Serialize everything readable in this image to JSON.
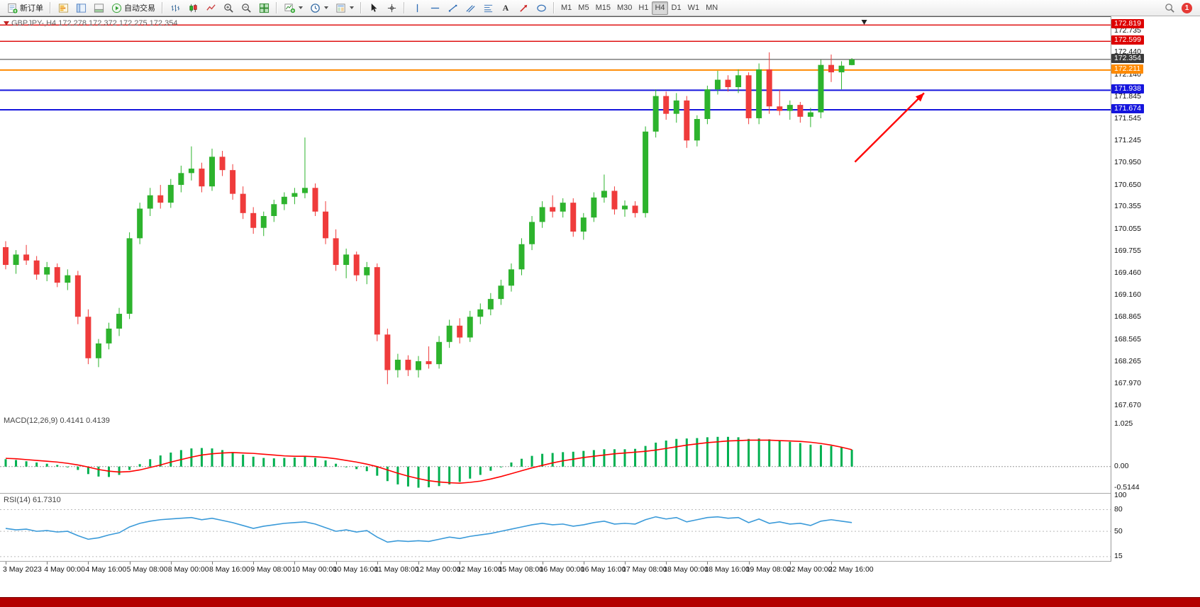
{
  "colors": {
    "bull": "#2db32d",
    "bear": "#ef3b3b",
    "macd_histogram": "#00b050",
    "macd_signal": "#ff0000",
    "rsi_line": "#3a9ad9",
    "arrow_annotation": "#ff0000",
    "bottom_bar": "#b30000"
  },
  "toolbar": {
    "new_order": "新订单",
    "autotrading": "自动交易",
    "text_tool_glyph": "A",
    "timeframes": [
      "M1",
      "M5",
      "M15",
      "M30",
      "H1",
      "H4",
      "D1",
      "W1",
      "MN"
    ],
    "active_timeframe": "H4",
    "notification_badge": "1"
  },
  "chart": {
    "title": "GBPJPY-,H4 172.278 172.372 172.275 172.354",
    "macd_label": "MACD(12,26,9) 0.4141 0.4139",
    "rsi_label": "RSI(14) 61.7310"
  },
  "chart_data": [
    {
      "type": "candlestick",
      "symbol": "GBPJPY-",
      "timeframe": "H4",
      "current_ohlc": {
        "open": 172.278,
        "high": 172.372,
        "low": 172.275,
        "close": 172.354
      },
      "ylim": [
        167.62,
        172.86
      ],
      "price_ticks": [
        "172.735",
        "172.440",
        "172.140",
        "171.845",
        "171.545",
        "171.245",
        "170.950",
        "170.650",
        "170.355",
        "170.055",
        "169.755",
        "169.460",
        "169.160",
        "168.865",
        "168.565",
        "168.265",
        "167.970",
        "167.670"
      ],
      "levels": [
        {
          "name": "resistance-line-172819",
          "price": 172.819,
          "label": "172.819",
          "color": "#dd0000",
          "lw": 1.4
        },
        {
          "name": "resistance-line-172599",
          "price": 172.599,
          "label": "172.599",
          "color": "#dd0000",
          "lw": 1.4
        },
        {
          "name": "current-price-line",
          "price": 172.354,
          "label": "172.354",
          "color": "#3b3b3b",
          "lw": 1
        },
        {
          "name": "pivot-line-172211",
          "price": 172.211,
          "label": "172.211",
          "color": "#ff8a00",
          "lw": 2
        },
        {
          "name": "support-line-171938",
          "price": 171.938,
          "label": "171.938",
          "color": "#1515dd",
          "lw": 2
        },
        {
          "name": "support-line-171674",
          "price": 171.674,
          "label": "171.674",
          "color": "#1515dd",
          "lw": 2
        }
      ],
      "annotations": {
        "arrow": {
          "from_bar": 82.3,
          "from_price": 170.97,
          "to_bar": 89.0,
          "to_price": 171.9
        },
        "top_marker_bar": 83.2
      },
      "candles": [
        [
          169.82,
          169.9,
          169.52,
          169.58
        ],
        [
          169.58,
          169.78,
          169.46,
          169.72
        ],
        [
          169.72,
          169.85,
          169.58,
          169.64
        ],
        [
          169.64,
          169.7,
          169.38,
          169.45
        ],
        [
          169.45,
          169.62,
          169.36,
          169.55
        ],
        [
          169.55,
          169.6,
          169.28,
          169.34
        ],
        [
          169.34,
          169.52,
          169.24,
          169.44
        ],
        [
          169.44,
          169.5,
          168.78,
          168.88
        ],
        [
          168.88,
          168.98,
          168.24,
          168.32
        ],
        [
          168.32,
          168.58,
          168.2,
          168.52
        ],
        [
          168.52,
          168.8,
          168.44,
          168.72
        ],
        [
          168.72,
          169.0,
          168.62,
          168.92
        ],
        [
          168.92,
          170.02,
          168.85,
          169.94
        ],
        [
          169.94,
          170.42,
          169.86,
          170.34
        ],
        [
          170.34,
          170.62,
          170.24,
          170.52
        ],
        [
          170.52,
          170.66,
          170.34,
          170.42
        ],
        [
          170.42,
          170.74,
          170.35,
          170.66
        ],
        [
          170.66,
          170.92,
          170.56,
          170.82
        ],
        [
          170.82,
          171.18,
          170.72,
          170.88
        ],
        [
          170.88,
          170.96,
          170.56,
          170.64
        ],
        [
          170.64,
          171.15,
          170.58,
          171.04
        ],
        [
          171.04,
          171.12,
          170.78,
          170.86
        ],
        [
          170.86,
          170.94,
          170.46,
          170.54
        ],
        [
          170.54,
          170.64,
          170.2,
          170.28
        ],
        [
          170.28,
          170.36,
          170.0,
          170.08
        ],
        [
          170.08,
          170.3,
          169.97,
          170.24
        ],
        [
          170.24,
          170.46,
          170.16,
          170.4
        ],
        [
          170.4,
          170.56,
          170.32,
          170.5
        ],
        [
          170.5,
          170.62,
          170.4,
          170.55
        ],
        [
          170.55,
          171.3,
          170.48,
          170.62
        ],
        [
          170.62,
          170.68,
          170.24,
          170.3
        ],
        [
          170.3,
          170.44,
          169.86,
          169.94
        ],
        [
          169.94,
          170.06,
          169.5,
          169.58
        ],
        [
          169.58,
          169.8,
          169.4,
          169.72
        ],
        [
          169.72,
          169.76,
          169.36,
          169.44
        ],
        [
          169.44,
          169.62,
          169.32,
          169.55
        ],
        [
          169.55,
          169.6,
          168.55,
          168.64
        ],
        [
          168.64,
          168.72,
          167.97,
          168.16
        ],
        [
          168.16,
          168.38,
          168.06,
          168.3
        ],
        [
          168.3,
          168.36,
          168.08,
          168.16
        ],
        [
          168.16,
          168.35,
          168.06,
          168.28
        ],
        [
          168.28,
          168.48,
          168.18,
          168.24
        ],
        [
          168.24,
          168.62,
          168.18,
          168.54
        ],
        [
          168.54,
          168.84,
          168.46,
          168.76
        ],
        [
          168.76,
          168.86,
          168.52,
          168.6
        ],
        [
          168.6,
          168.96,
          168.54,
          168.88
        ],
        [
          168.88,
          169.06,
          168.78,
          168.98
        ],
        [
          168.98,
          169.2,
          168.9,
          169.12
        ],
        [
          169.12,
          169.38,
          169.04,
          169.3
        ],
        [
          169.3,
          169.6,
          169.22,
          169.52
        ],
        [
          169.52,
          169.94,
          169.44,
          169.86
        ],
        [
          169.86,
          170.24,
          169.78,
          170.16
        ],
        [
          170.16,
          170.44,
          170.08,
          170.36
        ],
        [
          170.36,
          170.52,
          170.22,
          170.3
        ],
        [
          170.3,
          170.48,
          170.22,
          170.42
        ],
        [
          170.42,
          170.48,
          169.96,
          170.03
        ],
        [
          170.03,
          170.28,
          169.92,
          170.22
        ],
        [
          170.22,
          170.56,
          170.16,
          170.49
        ],
        [
          170.49,
          170.8,
          170.42,
          170.58
        ],
        [
          170.58,
          170.64,
          170.26,
          170.33
        ],
        [
          170.33,
          170.45,
          170.23,
          170.38
        ],
        [
          170.38,
          170.44,
          170.22,
          170.28
        ],
        [
          170.28,
          171.45,
          170.22,
          171.38
        ],
        [
          171.38,
          171.95,
          171.3,
          171.86
        ],
        [
          171.86,
          171.92,
          171.54,
          171.62
        ],
        [
          171.62,
          171.9,
          171.5,
          171.8
        ],
        [
          171.8,
          171.86,
          171.16,
          171.26
        ],
        [
          171.26,
          171.6,
          171.18,
          171.55
        ],
        [
          171.55,
          172.0,
          171.48,
          171.95
        ],
        [
          171.95,
          172.2,
          171.88,
          172.08
        ],
        [
          172.08,
          172.14,
          171.92,
          171.98
        ],
        [
          171.98,
          172.22,
          171.9,
          172.14
        ],
        [
          172.14,
          172.18,
          171.48,
          171.56
        ],
        [
          171.56,
          172.3,
          171.48,
          172.22
        ],
        [
          172.22,
          172.45,
          171.62,
          171.72
        ],
        [
          171.72,
          171.94,
          171.6,
          171.66
        ],
        [
          171.66,
          171.8,
          171.54,
          171.74
        ],
        [
          171.74,
          171.78,
          171.5,
          171.58
        ],
        [
          171.58,
          171.7,
          171.44,
          171.64
        ],
        [
          171.64,
          172.35,
          171.56,
          172.28
        ],
        [
          172.28,
          172.42,
          172.05,
          172.18
        ],
        [
          172.18,
          172.33,
          171.95,
          172.27
        ],
        [
          172.278,
          172.372,
          172.275,
          172.354
        ]
      ]
    },
    {
      "type": "bar",
      "name": "MACD(12,26,9)",
      "current_main": 0.4141,
      "current_signal": 0.4139,
      "ylim": [
        -0.62,
        1.23
      ],
      "scale_labels": [
        {
          "v": 1.025,
          "t": "1.025"
        },
        {
          "v": 0,
          "t": "0.00"
        },
        {
          "v": -0.5144,
          "t": "-0.5144"
        }
      ],
      "histogram": [
        0.18,
        0.16,
        0.13,
        0.1,
        0.07,
        0.04,
        0.0,
        -0.08,
        -0.18,
        -0.24,
        -0.25,
        -0.2,
        -0.08,
        0.06,
        0.18,
        0.27,
        0.34,
        0.4,
        0.44,
        0.45,
        0.44,
        0.4,
        0.35,
        0.29,
        0.24,
        0.21,
        0.2,
        0.21,
        0.22,
        0.24,
        0.21,
        0.15,
        0.07,
        0.0,
        -0.06,
        -0.11,
        -0.22,
        -0.35,
        -0.43,
        -0.48,
        -0.51,
        -0.5,
        -0.47,
        -0.43,
        -0.37,
        -0.29,
        -0.2,
        -0.1,
        0.0,
        0.1,
        0.19,
        0.26,
        0.31,
        0.33,
        0.35,
        0.36,
        0.38,
        0.4,
        0.42,
        0.42,
        0.42,
        0.43,
        0.5,
        0.58,
        0.63,
        0.67,
        0.68,
        0.69,
        0.71,
        0.72,
        0.72,
        0.71,
        0.67,
        0.68,
        0.66,
        0.63,
        0.6,
        0.57,
        0.53,
        0.52,
        0.5,
        0.46,
        0.41
      ],
      "signal": [
        0.2,
        0.19,
        0.17,
        0.15,
        0.13,
        0.11,
        0.08,
        0.04,
        -0.01,
        -0.07,
        -0.11,
        -0.13,
        -0.12,
        -0.08,
        -0.02,
        0.04,
        0.11,
        0.17,
        0.23,
        0.28,
        0.31,
        0.33,
        0.34,
        0.33,
        0.32,
        0.3,
        0.28,
        0.26,
        0.25,
        0.25,
        0.24,
        0.22,
        0.19,
        0.15,
        0.11,
        0.06,
        0.0,
        -0.08,
        -0.16,
        -0.23,
        -0.29,
        -0.34,
        -0.37,
        -0.39,
        -0.4,
        -0.38,
        -0.35,
        -0.3,
        -0.24,
        -0.17,
        -0.1,
        -0.03,
        0.03,
        0.09,
        0.14,
        0.18,
        0.22,
        0.25,
        0.28,
        0.31,
        0.33,
        0.35,
        0.37,
        0.4,
        0.44,
        0.48,
        0.52,
        0.55,
        0.58,
        0.6,
        0.62,
        0.63,
        0.64,
        0.64,
        0.64,
        0.63,
        0.62,
        0.61,
        0.59,
        0.56,
        0.52,
        0.47,
        0.41
      ]
    },
    {
      "type": "line",
      "name": "RSI(14)",
      "current": 61.731,
      "ylim": [
        10,
        100
      ],
      "level_lines": [
        80,
        50,
        15
      ],
      "scale_labels": [
        {
          "v": 100,
          "t": "100"
        },
        {
          "v": 80,
          "t": "80"
        },
        {
          "v": 50,
          "t": "50"
        },
        {
          "v": 15,
          "t": "15"
        }
      ],
      "values": [
        54,
        52,
        53,
        50,
        51,
        49,
        50,
        44,
        39,
        41,
        45,
        48,
        56,
        61,
        64,
        66,
        67,
        68,
        69,
        66,
        68,
        65,
        62,
        58,
        54,
        57,
        59,
        61,
        62,
        63,
        60,
        55,
        50,
        52,
        49,
        51,
        42,
        35,
        37,
        36,
        37,
        36,
        39,
        42,
        40,
        43,
        45,
        47,
        50,
        53,
        56,
        59,
        61,
        59,
        60,
        57,
        59,
        62,
        64,
        60,
        61,
        60,
        66,
        70,
        67,
        69,
        63,
        66,
        69,
        70,
        68,
        69,
        62,
        67,
        61,
        63,
        60,
        61,
        58,
        64,
        66,
        64,
        62
      ]
    }
  ],
  "time_axis": {
    "labels": [
      {
        "i": 0,
        "t": "3 May 2023"
      },
      {
        "i": 4,
        "t": "4 May 00:00"
      },
      {
        "i": 8,
        "t": "4 May 16:00"
      },
      {
        "i": 12,
        "t": "5 May 08:00"
      },
      {
        "i": 16,
        "t": "8 May 00:00"
      },
      {
        "i": 20,
        "t": "8 May 16:00"
      },
      {
        "i": 24,
        "t": "9 May 08:00"
      },
      {
        "i": 28,
        "t": "10 May 00:00"
      },
      {
        "i": 32,
        "t": "10 May 16:00"
      },
      {
        "i": 36,
        "t": "11 May 08:00"
      },
      {
        "i": 40,
        "t": "12 May 00:00"
      },
      {
        "i": 44,
        "t": "12 May 16:00"
      },
      {
        "i": 48,
        "t": "15 May 08:00"
      },
      {
        "i": 52,
        "t": "16 May 00:00"
      },
      {
        "i": 56,
        "t": "16 May 16:00"
      },
      {
        "i": 60,
        "t": "17 May 08:00"
      },
      {
        "i": 64,
        "t": "18 May 00:00"
      },
      {
        "i": 68,
        "t": "18 May 16:00"
      },
      {
        "i": 72,
        "t": "19 May 08:00"
      },
      {
        "i": 76,
        "t": "22 May 00:00"
      },
      {
        "i": 80,
        "t": "22 May 16:00"
      }
    ]
  }
}
